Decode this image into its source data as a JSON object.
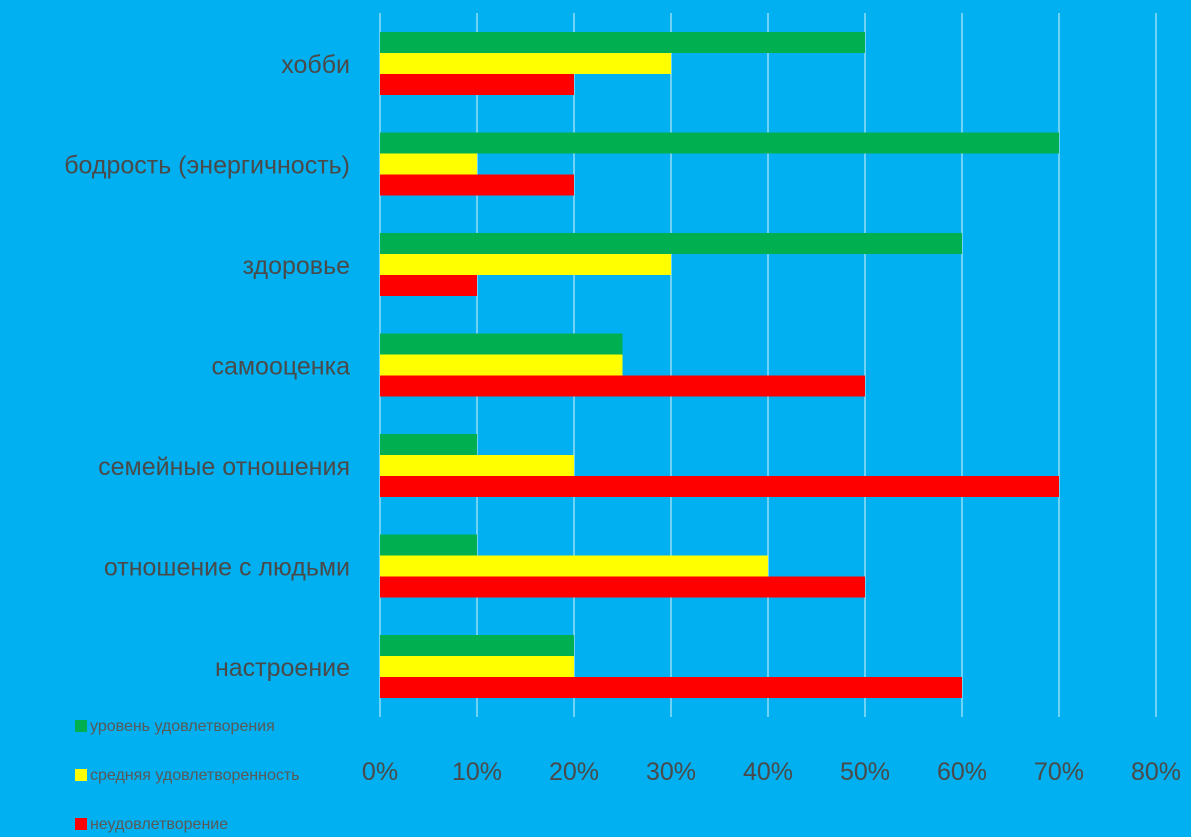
{
  "chart_data": {
    "type": "bar",
    "orientation": "horizontal",
    "title": "",
    "xlabel": "",
    "ylabel": "",
    "categories": [
      "хобби",
      "бодрость (энергичность)",
      "здоровье",
      "самооценка",
      "семейные отношения",
      "отношение с людьми",
      "настроение"
    ],
    "series": [
      {
        "name": "уровень удовлетворения",
        "color": "#00B050",
        "values": [
          50,
          70,
          60,
          25,
          10,
          10,
          20
        ]
      },
      {
        "name": "средняя удовлетворенность",
        "color": "#FFFF00",
        "values": [
          30,
          10,
          30,
          25,
          20,
          40,
          20
        ]
      },
      {
        "name": "неудовлетворение",
        "color": "#FF0000",
        "values": [
          20,
          20,
          10,
          50,
          70,
          50,
          60
        ]
      }
    ],
    "xlim": [
      0,
      80
    ],
    "x_ticks": [
      "0%",
      "10%",
      "20%",
      "30%",
      "40%",
      "50%",
      "60%",
      "70%",
      "80%"
    ],
    "grid": true,
    "legend_position": "bottom-left"
  }
}
